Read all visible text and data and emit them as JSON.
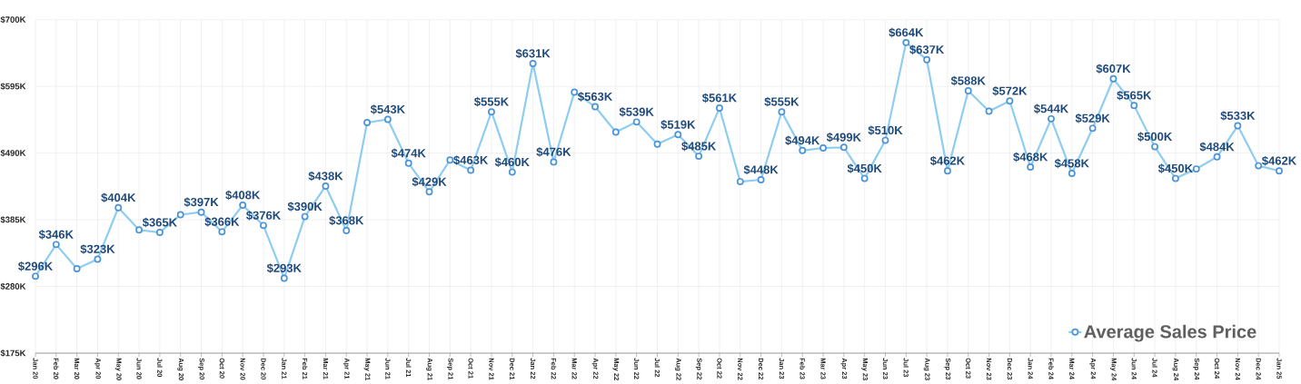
{
  "chart_data": {
    "type": "line",
    "categories": [
      "Jan 20",
      "Feb 20",
      "Mar 20",
      "Apr 20",
      "May 20",
      "Jun 20",
      "Jul 20",
      "Aug 20",
      "Sep 20",
      "Oct 20",
      "Nov 20",
      "Dec 20",
      "Jan 21",
      "Feb 21",
      "Mar 21",
      "Apr 21",
      "May 21",
      "Jun 21",
      "Jul 21",
      "Aug 21",
      "Sep 21",
      "Oct 21",
      "Nov 21",
      "Dec 21",
      "Jan 22",
      "Feb 22",
      "Mar 22",
      "Apr 22",
      "May 22",
      "Jun 22",
      "Jul 22",
      "Aug 22",
      "Sep 22",
      "Oct 22",
      "Nov 22",
      "Dec 22",
      "Jan 23",
      "Feb 23",
      "Mar 23",
      "Apr 23",
      "May 23",
      "Jun 23",
      "Jul 23",
      "Aug 23",
      "Sep 23",
      "Oct 23",
      "Nov 23",
      "Dec 23",
      "Jan 24",
      "Feb 24",
      "Mar 24",
      "Apr 24",
      "May 24",
      "Jun 24",
      "Jul 24",
      "Aug 24",
      "Sep 24",
      "Oct 24",
      "Nov 24",
      "Dec 24",
      "Jan 25"
    ],
    "series": [
      {
        "name": "Average Sales Price",
        "color": "#8ecdf0",
        "values": [
          296,
          346,
          308,
          323,
          404,
          369,
          365,
          393,
          397,
          366,
          408,
          376,
          293,
          390,
          438,
          368,
          538,
          543,
          474,
          429,
          479,
          463,
          555,
          460,
          631,
          476,
          586,
          563,
          523,
          539,
          504,
          519,
          485,
          561,
          445,
          448,
          555,
          494,
          498,
          499,
          450,
          510,
          664,
          637,
          462,
          588,
          556,
          572,
          468,
          544,
          458,
          529,
          607,
          565,
          500,
          450,
          465,
          484,
          533,
          470,
          462
        ],
        "value_labels": [
          "$296K",
          "$346K",
          null,
          "$323K",
          "$404K",
          null,
          "$365K",
          null,
          "$397K",
          "$366K",
          "$408K",
          "$376K",
          "$293K",
          "$390K",
          "$438K",
          "$368K",
          null,
          "$543K",
          "$474K",
          "$429K",
          null,
          "$463K",
          "$555K",
          "$460K",
          "$631K",
          "$476K",
          null,
          "$563K",
          null,
          "$539K",
          null,
          "$519K",
          "$485K",
          "$561K",
          null,
          "$448K",
          "$555K",
          "$494K",
          null,
          "$499K",
          "$450K",
          "$510K",
          "$664K",
          "$637K",
          "$462K",
          "$588K",
          null,
          "$572K",
          "$468K",
          "$544K",
          "$458K",
          "$529K",
          "$607K",
          "$565K",
          "$500K",
          "$450K",
          null,
          "$484K",
          "$533K",
          null,
          "$462K"
        ]
      }
    ],
    "ylim": [
      175,
      700
    ],
    "yticks": [
      {
        "value": 175,
        "label": "$175K"
      },
      {
        "value": 280,
        "label": "$280K"
      },
      {
        "value": 385,
        "label": "$385K"
      },
      {
        "value": 490,
        "label": "$490K"
      },
      {
        "value": 595,
        "label": "$595K"
      },
      {
        "value": 700,
        "label": "$700K"
      }
    ],
    "grid": true,
    "legend": "bottom right",
    "marker": "circle",
    "line_style": "solid"
  }
}
